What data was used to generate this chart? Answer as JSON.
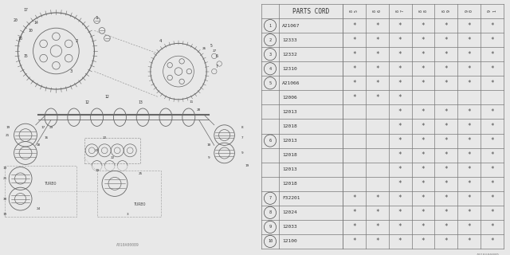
{
  "watermark": "A010A00089",
  "table_header": "PARTS CORD",
  "col_headers": [
    "8\n5",
    "8\n6",
    "8\n7",
    "8\n8",
    "8\n9",
    "9\n0",
    "9\n1"
  ],
  "rows": [
    {
      "num": "1",
      "part": "A21067",
      "marks": [
        1,
        1,
        1,
        1,
        1,
        1,
        1
      ]
    },
    {
      "num": "2",
      "part": "12333",
      "marks": [
        1,
        1,
        1,
        1,
        1,
        1,
        1
      ]
    },
    {
      "num": "3",
      "part": "12332",
      "marks": [
        1,
        1,
        1,
        1,
        1,
        1,
        1
      ]
    },
    {
      "num": "4",
      "part": "12310",
      "marks": [
        1,
        1,
        1,
        1,
        1,
        1,
        1
      ]
    },
    {
      "num": "5",
      "part": "A21066",
      "marks": [
        1,
        1,
        1,
        1,
        1,
        1,
        1
      ]
    },
    {
      "num": "",
      "part": "12006",
      "marks": [
        1,
        1,
        1,
        0,
        0,
        0,
        0
      ]
    },
    {
      "num": "",
      "part": "12013",
      "marks": [
        0,
        0,
        1,
        1,
        1,
        1,
        1
      ]
    },
    {
      "num": "",
      "part": "12018",
      "marks": [
        0,
        0,
        1,
        1,
        1,
        1,
        1
      ]
    },
    {
      "num": "6",
      "part": "12013",
      "marks": [
        0,
        0,
        1,
        1,
        1,
        1,
        1
      ]
    },
    {
      "num": "",
      "part": "12018",
      "marks": [
        0,
        0,
        1,
        1,
        1,
        1,
        1
      ]
    },
    {
      "num": "",
      "part": "12013",
      "marks": [
        0,
        0,
        1,
        1,
        1,
        1,
        1
      ]
    },
    {
      "num": "",
      "part": "12018",
      "marks": [
        0,
        0,
        1,
        1,
        1,
        1,
        1
      ]
    },
    {
      "num": "7",
      "part": "F32201",
      "marks": [
        1,
        1,
        1,
        1,
        1,
        1,
        1
      ]
    },
    {
      "num": "8",
      "part": "12024",
      "marks": [
        1,
        1,
        1,
        1,
        1,
        1,
        1
      ]
    },
    {
      "num": "9",
      "part": "12033",
      "marks": [
        1,
        1,
        1,
        1,
        1,
        1,
        1
      ]
    },
    {
      "num": "10",
      "part": "12100",
      "marks": [
        1,
        1,
        1,
        1,
        1,
        1,
        1
      ]
    }
  ],
  "bg_color": "#e8e8e8",
  "table_bg": "#f0f0f0",
  "line_color": "#666666",
  "text_color": "#333333"
}
